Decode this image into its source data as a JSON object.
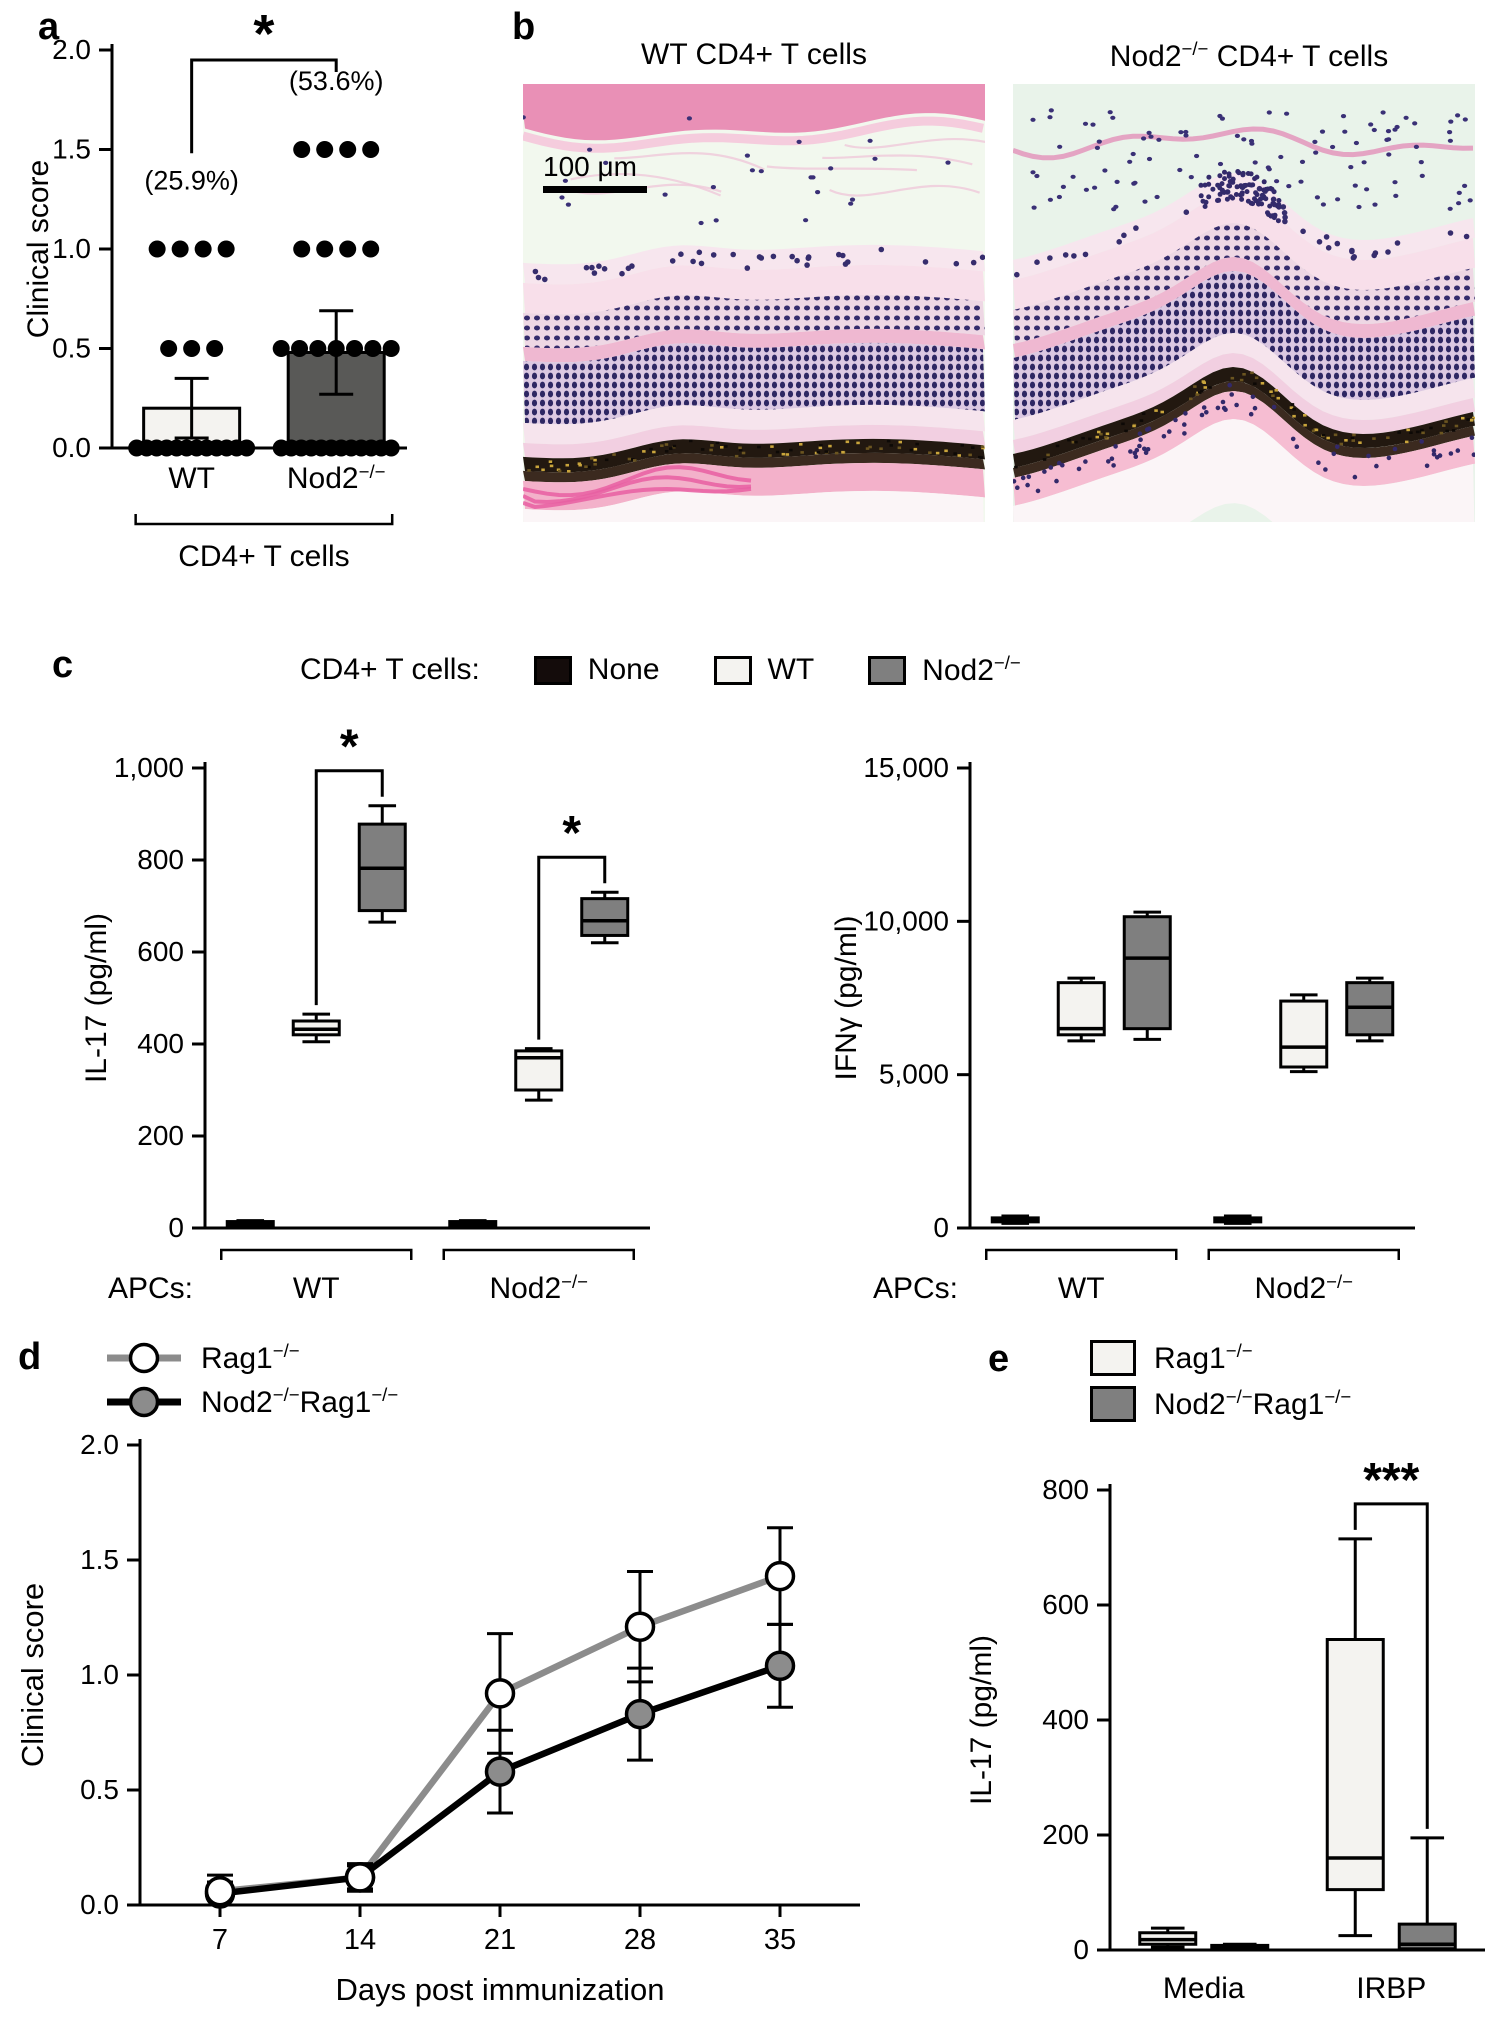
{
  "panels": {
    "a": "a",
    "b": "b",
    "c": "c",
    "d": "d",
    "e": "e"
  },
  "panel_b": {
    "titles": [
      "WT CD4+ T cells",
      "Nod2^{−/−} CD4+ T cells"
    ],
    "scale_bar_label": "100 μm"
  },
  "panel_c": {
    "legend_label": "CD4+ T cells:",
    "legend_items": [
      {
        "name": "None",
        "fill": "#140c0b"
      },
      {
        "name": "WT",
        "fill": "#f4f3f0"
      },
      {
        "name": "Nod2^{−/−}",
        "fill": "#7f7f7f"
      }
    ]
  },
  "chart_data": [
    {
      "id": "a",
      "type": "bar",
      "ylabel": "Clinical score",
      "ylim": [
        0,
        2
      ],
      "yticks": [
        0,
        0.5,
        1,
        1.5,
        2
      ],
      "categories": [
        "WT",
        "Nod2^{−/−}"
      ],
      "group_label": "CD4+ T cells",
      "significance": "*",
      "series": [
        {
          "name": "WT",
          "mean": 0.2,
          "sd": 0.15,
          "fill": "#f4f3f0",
          "annotation": "(25.9%)",
          "dots": [
            {
              "value": 1.0,
              "count": 4
            },
            {
              "value": 0.5,
              "count": 3
            },
            {
              "value": 0.0,
              "count": 12
            }
          ]
        },
        {
          "name": "Nod2^{−/−}",
          "mean": 0.48,
          "sd": 0.21,
          "fill": "#595957",
          "annotation": "(53.6%)",
          "dots": [
            {
              "value": 1.5,
              "count": 4
            },
            {
              "value": 1.0,
              "count": 4
            },
            {
              "value": 0.5,
              "count": 7
            },
            {
              "value": 0.0,
              "count": 12
            }
          ]
        }
      ]
    },
    {
      "id": "c_il17",
      "type": "box",
      "ylabel": "IL-17 (pg/ml)",
      "ylim": [
        0,
        1000
      ],
      "yticks": [
        0,
        200,
        400,
        600,
        800,
        1000
      ],
      "x_axis_label": "APCs:",
      "series_names": [
        "None",
        "WT",
        "Nod2^{−/−}"
      ],
      "fills": [
        "#140c0b",
        "#f4f3f0",
        "#7f7f7f"
      ],
      "groups": [
        {
          "label": "WT",
          "significance": "*",
          "boxes": [
            {
              "series": "None",
              "low": 4,
              "q1": 6,
              "median": 10,
              "q3": 14,
              "high": 16
            },
            {
              "series": "WT",
              "low": 405,
              "q1": 420,
              "median": 432,
              "q3": 450,
              "high": 465
            },
            {
              "series": "Nod2^{−/−}",
              "low": 665,
              "q1": 690,
              "median": 782,
              "q3": 878,
              "high": 918
            }
          ]
        },
        {
          "label": "Nod2^{−/−}",
          "significance": "*",
          "boxes": [
            {
              "series": "None",
              "low": 4,
              "q1": 6,
              "median": 10,
              "q3": 14,
              "high": 16
            },
            {
              "series": "WT",
              "low": 278,
              "q1": 300,
              "median": 370,
              "q3": 385,
              "high": 390
            },
            {
              "series": "Nod2^{−/−}",
              "low": 620,
              "q1": 636,
              "median": 668,
              "q3": 716,
              "high": 730
            }
          ]
        }
      ]
    },
    {
      "id": "c_ifng",
      "type": "box",
      "ylabel": "IFNγ (pg/ml)",
      "ylim": [
        0,
        15000
      ],
      "yticks": [
        0,
        5000,
        10000,
        15000
      ],
      "x_axis_label": "APCs:",
      "series_names": [
        "None",
        "WT",
        "Nod2^{−/−}"
      ],
      "fills": [
        "#140c0b",
        "#f4f3f0",
        "#7f7f7f"
      ],
      "groups": [
        {
          "label": "WT",
          "boxes": [
            {
              "series": "None",
              "low": 150,
              "q1": 200,
              "median": 260,
              "q3": 330,
              "high": 390
            },
            {
              "series": "WT",
              "low": 6100,
              "q1": 6300,
              "median": 6500,
              "q3": 8000,
              "high": 8150
            },
            {
              "series": "Nod2^{−/−}",
              "low": 6150,
              "q1": 6500,
              "median": 8800,
              "q3": 10150,
              "high": 10300
            }
          ]
        },
        {
          "label": "Nod2^{−/−}",
          "boxes": [
            {
              "series": "None",
              "low": 150,
              "q1": 200,
              "median": 260,
              "q3": 330,
              "high": 390
            },
            {
              "series": "WT",
              "low": 5100,
              "q1": 5250,
              "median": 5900,
              "q3": 7400,
              "high": 7600
            },
            {
              "series": "Nod2^{−/−}",
              "low": 6100,
              "q1": 6300,
              "median": 7200,
              "q3": 8000,
              "high": 8150
            }
          ]
        }
      ]
    },
    {
      "id": "d",
      "type": "line",
      "xlabel": "Days post immunization",
      "ylabel": "Clinical score",
      "x": [
        7,
        14,
        21,
        28,
        35
      ],
      "ylim": [
        0,
        2
      ],
      "yticks": [
        0,
        0.5,
        1,
        1.5,
        2
      ],
      "series": [
        {
          "name": "Rag1^{−/−}",
          "color": "#8c8c8c",
          "marker_fill": "#ffffff",
          "values": [
            0.06,
            0.12,
            0.92,
            1.21,
            1.43
          ],
          "errors": [
            0.07,
            0.06,
            0.26,
            0.24,
            0.21
          ]
        },
        {
          "name": "Nod2^{−/−}Rag1^{−/−}",
          "color": "#000000",
          "marker_fill": "#8c8c8c",
          "values": [
            0.05,
            0.12,
            0.58,
            0.83,
            1.04
          ],
          "errors": [
            0.05,
            0.05,
            0.18,
            0.2,
            0.18
          ]
        }
      ]
    },
    {
      "id": "e",
      "type": "box",
      "ylabel": "IL-17 (pg/ml)",
      "ylim": [
        0,
        800
      ],
      "yticks": [
        0,
        200,
        400,
        600,
        800
      ],
      "fills": [
        "#f4f3f0",
        "#7f7f7f"
      ],
      "legend": [
        {
          "name": "Rag1^{−/−}",
          "fill": "#f4f3f0"
        },
        {
          "name": "Nod2^{−/−}Rag1^{−/−}",
          "fill": "#7f7f7f"
        }
      ],
      "groups": [
        {
          "label": "Media",
          "boxes": [
            {
              "series": "Rag1^{−/−}",
              "low": 5,
              "q1": 10,
              "median": 18,
              "q3": 30,
              "high": 38
            },
            {
              "series": "Nod2^{−/−}Rag1^{−/−}",
              "low": 0,
              "q1": 1,
              "median": 4,
              "q3": 8,
              "high": 10
            }
          ]
        },
        {
          "label": "IRBP",
          "significance": "***",
          "boxes": [
            {
              "series": "Rag1^{−/−}",
              "low": 25,
              "q1": 105,
              "median": 160,
              "q3": 540,
              "high": 715
            },
            {
              "series": "Nod2^{−/−}Rag1^{−/−}",
              "low": 0,
              "q1": 2,
              "median": 10,
              "q3": 45,
              "high": 195
            }
          ]
        }
      ]
    }
  ]
}
